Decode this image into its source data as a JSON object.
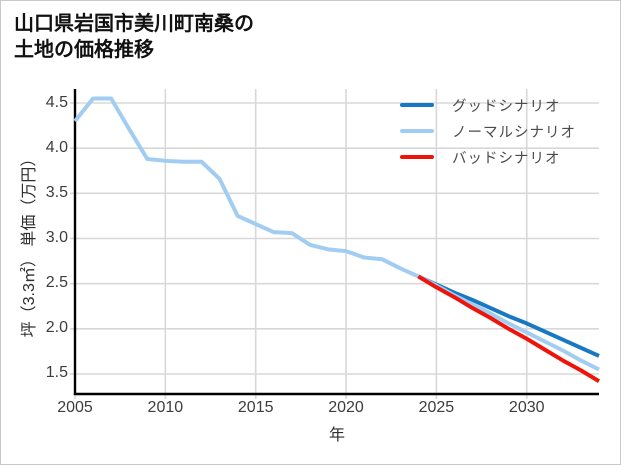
{
  "title_lines": "山口県岩国市美川町南桑の\n土地の価格推移",
  "chart_data": {
    "type": "line",
    "title": "山口県岩国市美川町南桑の土地の価格推移",
    "xlabel": "年",
    "ylabel": "坪（3.3㎡） 単価（万円）",
    "x_ticks": [
      2005,
      2010,
      2015,
      2020,
      2025,
      2030
    ],
    "y_ticks": [
      4.5,
      4.0,
      3.5,
      3.0,
      2.5,
      2.0,
      1.5
    ],
    "xlim": [
      2005,
      2034
    ],
    "ylim": [
      1.28,
      4.65
    ],
    "grid": true,
    "legend_position": "upper right",
    "colors": {
      "grid": "#d8d8d8",
      "spine": "#000000",
      "tick_text": "#3d3d3d"
    },
    "series": [
      {
        "name": "グッドシナリオ",
        "color": "#1778c4",
        "x": [
          2024,
          2025,
          2026,
          2027,
          2028,
          2029,
          2030,
          2031,
          2032,
          2033,
          2034
        ],
        "values": [
          2.58,
          2.49,
          2.4,
          2.32,
          2.23,
          2.14,
          2.06,
          1.97,
          1.88,
          1.79,
          1.7
        ]
      },
      {
        "name": "ノーマルシナリオ",
        "color": "#a2cdf2",
        "x": [
          2005,
          2006,
          2007,
          2008,
          2009,
          2010,
          2011,
          2012,
          2013,
          2014,
          2015,
          2016,
          2017,
          2018,
          2019,
          2020,
          2021,
          2022,
          2023,
          2024,
          2025,
          2026,
          2027,
          2028,
          2029,
          2030,
          2031,
          2032,
          2033,
          2034
        ],
        "values": [
          4.3,
          4.55,
          4.55,
          4.21,
          3.88,
          3.86,
          3.85,
          3.85,
          3.66,
          3.25,
          3.16,
          3.07,
          3.06,
          2.93,
          2.88,
          2.86,
          2.79,
          2.77,
          2.67,
          2.58,
          2.48,
          2.37,
          2.27,
          2.17,
          2.06,
          1.96,
          1.86,
          1.76,
          1.65,
          1.55
        ]
      },
      {
        "name": "バッドシナリオ",
        "color": "#ee1409",
        "x": [
          2024,
          2025,
          2026,
          2027,
          2028,
          2029,
          2030,
          2031,
          2032,
          2033,
          2034
        ],
        "values": [
          2.58,
          2.46,
          2.35,
          2.23,
          2.12,
          2.0,
          1.89,
          1.77,
          1.65,
          1.54,
          1.42
        ]
      }
    ]
  }
}
